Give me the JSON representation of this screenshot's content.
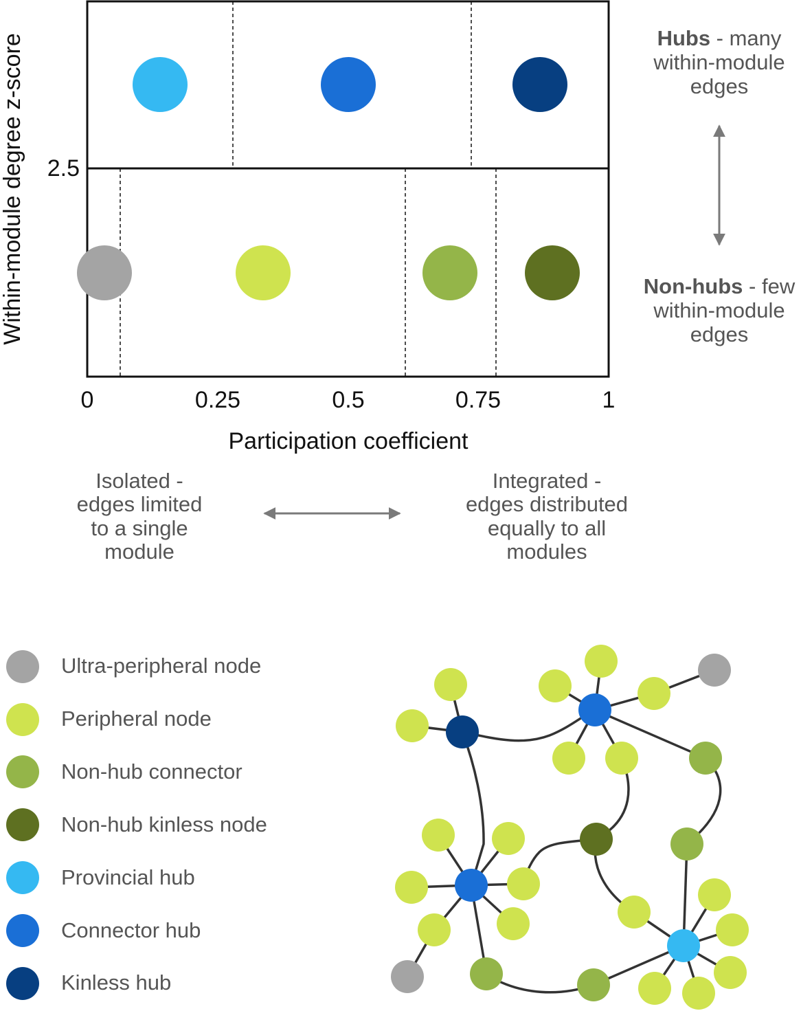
{
  "plot": {
    "y_axis_label": "Within-module degree z-score",
    "y_threshold_label": "2.5",
    "x_axis_label": "Participation coefficient",
    "x_ticks": [
      "0",
      "0.25",
      "0.5",
      "0.75",
      "1"
    ]
  },
  "side_notes": {
    "hubs_bold": "Hubs",
    "hubs_rest": " - many",
    "hubs_line2": "within-module",
    "hubs_line3": "edges",
    "nonhubs_bold": "Non-hubs",
    "nonhubs_rest": " - few",
    "nonhubs_line2": "within-module",
    "nonhubs_line3": "edges"
  },
  "bottom_notes": {
    "isolated": [
      "Isolated -",
      "edges limited",
      "to a single",
      "module"
    ],
    "integrated": [
      "Integrated -",
      "edges distributed",
      "equally to all",
      "modules"
    ]
  },
  "legend": [
    {
      "label": "Ultra-peripheral node",
      "color": "#a4a4a4"
    },
    {
      "label": "Peripheral node",
      "color": "#cfe34f"
    },
    {
      "label": "Non-hub connector",
      "color": "#94b549"
    },
    {
      "label": "Non-hub kinless node",
      "color": "#5e7021"
    },
    {
      "label": "Provincial hub",
      "color": "#35b9f2"
    },
    {
      "label": "Connector hub",
      "color": "#1a6fd6"
    },
    {
      "label": "Kinless hub",
      "color": "#073f81"
    }
  ]
}
